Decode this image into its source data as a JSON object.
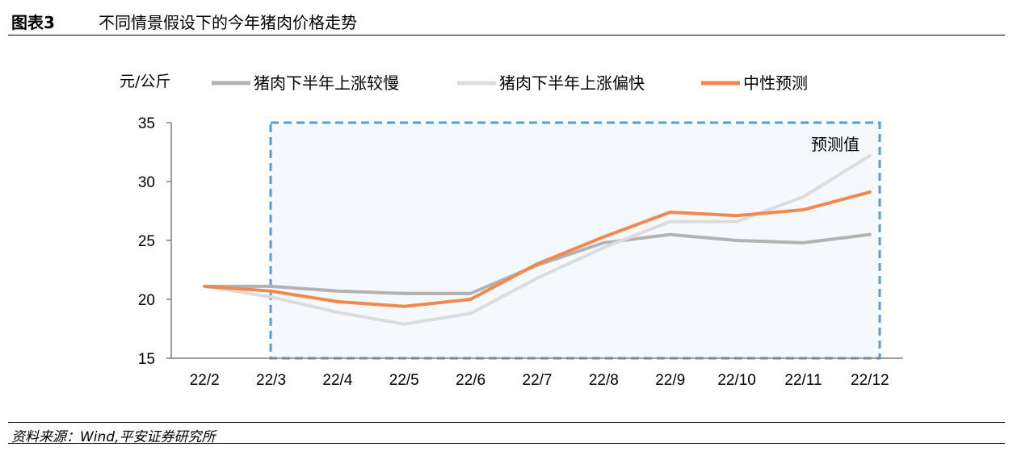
{
  "header": {
    "figure_number": "图表3",
    "title": "不同情景假设下的今年猪肉价格走势"
  },
  "source": "资料来源：Wind,平安证券研究所",
  "chart_data": {
    "type": "line",
    "ylabel": "元/公斤",
    "categories": [
      "22/2",
      "22/3",
      "22/4",
      "22/5",
      "22/6",
      "22/7",
      "22/8",
      "22/9",
      "22/10",
      "22/11",
      "22/12"
    ],
    "ylim": [
      15,
      35
    ],
    "yticks": [
      15,
      20,
      25,
      30,
      35
    ],
    "grid": false,
    "legend_position": "top",
    "annotation": "预测值",
    "forecast_region": {
      "from": "22/3",
      "to": "22/12",
      "style": "dashed box"
    },
    "series": [
      {
        "name": "猪肉下半年上涨较慢",
        "color": "#b2b2b2",
        "values": [
          21.1,
          21.1,
          20.7,
          20.5,
          20.5,
          22.9,
          24.8,
          25.5,
          25.0,
          24.8,
          25.5
        ]
      },
      {
        "name": "猪肉下半年上涨偏快",
        "color": "#dcdcdc",
        "values": [
          21.1,
          20.2,
          18.9,
          17.9,
          18.8,
          21.8,
          24.4,
          26.6,
          26.6,
          28.7,
          32.2
        ]
      },
      {
        "name": "中性预测",
        "color": "#f0894f",
        "values": [
          21.1,
          20.7,
          19.8,
          19.4,
          20.0,
          23.0,
          25.3,
          27.4,
          27.1,
          27.6,
          29.1
        ]
      }
    ],
    "colors": {
      "forecast_box": "#5b9bd5",
      "forecast_fill": "#f5f8fc",
      "axis": "#7f7f7f"
    }
  }
}
